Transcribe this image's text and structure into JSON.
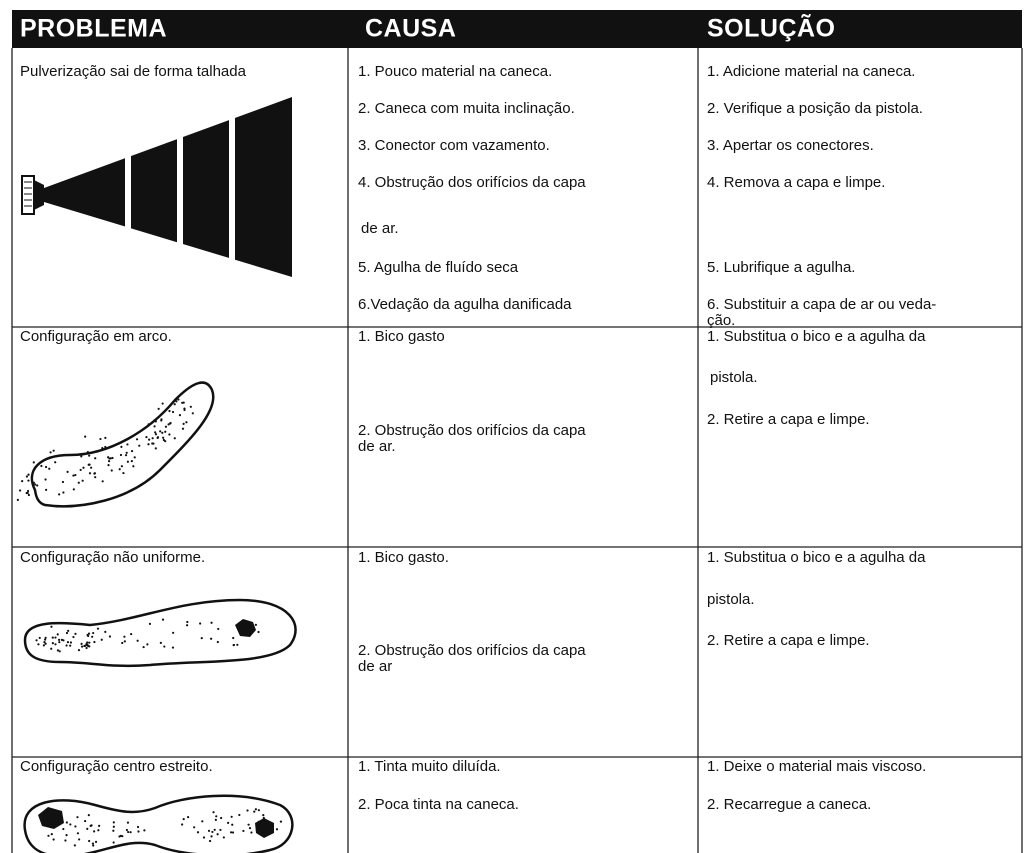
{
  "table": {
    "headers": [
      "PROBLEMA",
      "CAUSA",
      "SOLUÇÃO"
    ],
    "rows": [
      {
        "problem": "Pulverização sai de forma talhada",
        "causes": [
          "1. Pouco material na caneca.",
          "2. Caneca com muita inclinação.",
          "3. Conector com vazamento.",
          "4. Obstrução dos orifícios da capa",
          "de ar.",
          "5. Agulha de fluído seca",
          "6.Vedação da agulha danificada"
        ],
        "solutions": [
          "1. Adicione material na caneca.",
          "2. Verifique a posição da pistola.",
          "3. Apertar os conectores.",
          "4. Remova a capa e limpe.",
          "5. Lubrifique a agulha.",
          "6. Substituir a capa de ar ou veda-",
          "ção."
        ]
      },
      {
        "problem": "Configuração em arco.",
        "causes": [
          "1. Bico gasto",
          "2. Obstrução dos orifícios da capa",
          "de ar."
        ],
        "solutions": [
          "1. Substitua o bico e a agulha da",
          "pistola.",
          "2. Retire a capa e limpe."
        ]
      },
      {
        "problem": "Configuração não uniforme.",
        "causes": [
          "1. Bico gasto.",
          "2. Obstrução dos orifícios da capa",
          "de ar"
        ],
        "solutions": [
          "1. Substitua o bico e a agulha da",
          "pistola.",
          "2. Retire a capa e limpe."
        ]
      },
      {
        "problem": "Configuração centro estreito.",
        "causes": [
          "1. Tinta muito diluída.",
          "2. Poca tinta na caneca."
        ],
        "solutions": [
          "1. Deixe o material mais viscoso.",
          "2. Recarregue a caneca."
        ]
      }
    ]
  }
}
